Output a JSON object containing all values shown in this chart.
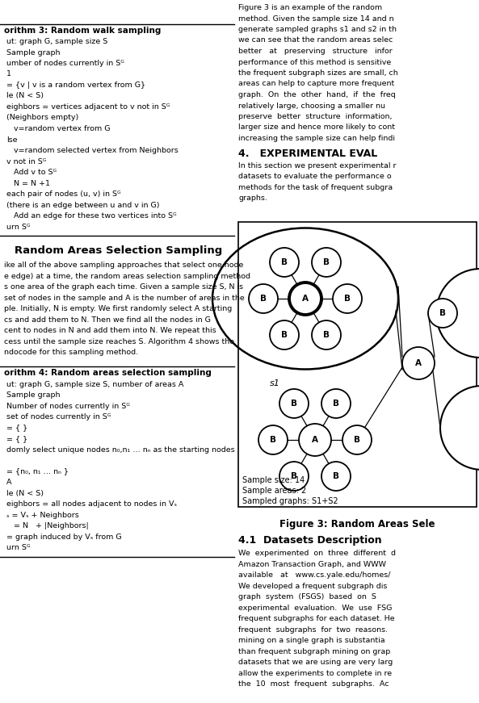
{
  "fig_width": 5.93,
  "fig_height": 8.71,
  "background_color": "#ffffff",
  "sample_size_text": "Sample size: 14",
  "sample_areas_text": "Sample areas: 2",
  "sampled_graphs_text": "Sampled graphs: S1+S2",
  "figure_caption": "Figure 3: Random Areas Sele",
  "alg3_title": "orithm 3: Random walk sampling",
  "alg4_title": "orithm 4: Random areas selection sampling",
  "section_title": "   Random Areas Selection Sampling",
  "alg3_lines": [
    "ut: graph G, sample size S",
    "Sample graph",
    "umber of nodes currently in Sᴳ",
    "1",
    "= {v | v is a random vertex from G}",
    "le (N < S)",
    "eighbors = vertices adjacent to v not in Sᴳ",
    "(Neighbors empty)",
    "   v=random vertex from G",
    "lse",
    "   v=random selected vertex from Neighbors",
    "v not in Sᴳ",
    "   Add v to Sᴳ",
    "   N = N +1",
    "each pair of nodes (u, v) in Sᴳ",
    "(there is an edge between u and v in G)",
    "   Add an edge for these two vertices into Sᴳ",
    "urn Sᴳ"
  ],
  "body_lines": [
    "ike all of the above sampling approaches that select one node",
    "e edge) at a time, the random areas selection sampling method",
    "s one area of the graph each time. Given a sample size S, N is",
    "set of nodes in the sample and A is the number of areas in the",
    "ple. Initially, N is empty. We first randomly select A starting",
    "cs and add them to N. Then we find all the nodes in G",
    "cent to nodes in N and add them into N. We repeat this",
    "cess until the sample size reaches S. Algorithm 4 shows the",
    "ndocode for this sampling method."
  ],
  "alg4_lines": [
    "ut: graph G, sample size S, number of areas A",
    "Sample graph",
    "Number of nodes currently in Sᴳ",
    "set of nodes currently in Sᴳ",
    "= { }",
    "= { }",
    "domly select unique nodes n₀,n₁ … nₙ as the starting nodes",
    "",
    "= {n₀, n₁ … nₙ }",
    "A",
    "le (N < S)",
    "eighbors = all nodes adjacent to nodes in Vₛ",
    "ₛ = Vₛ + Neighbors",
    "   = N   + |Neighbors|",
    "= graph induced by Vₛ from G",
    "urn Sᴳ"
  ],
  "right_top_lines": [
    "Figure 3 is an example of the random",
    "method. Given the sample size 14 and n",
    "generate sampled graphs s1 and s2 in th",
    "we can see that the random areas selec",
    "better   at   preserving   structure   infor",
    "performance of this method is sensitive",
    "the frequent subgraph sizes are small, ch",
    "areas can help to capture more frequent",
    "graph.  On  the  other  hand,  if  the  freq",
    "relatively large, choosing a smaller nu",
    "preserve  better  structure  information,",
    "larger size and hence more likely to cont",
    "increasing the sample size can help findi"
  ],
  "section4_title": "4.   EXPERIMENTAL EVAL",
  "section4_lines": [
    "In this section we present experimental r",
    "datasets to evaluate the performance o",
    "methods for the task of frequent subgra",
    "graphs."
  ],
  "section41_title": "4.1  Datasets Description",
  "section41_lines": [
    "We  experimented  on  three  different  d",
    "Amazon Transaction Graph, and WWW",
    "available   at   www.cs.yale.edu/homes/",
    "We developed a frequent subgraph dis",
    "graph  system  (FSGS)  based  on  S",
    "experimental  evaluation.  We  use  FSG",
    "frequent subgraphs for each dataset. He",
    "frequent  subgraphs  for  two  reasons.",
    "mining on a single graph is substantia",
    "than frequent subgraph mining on grap",
    "datasets that we are using are very larg",
    "allow the experiments to complete in re",
    "the  10  most  frequent  subgraphs.  Ac"
  ]
}
